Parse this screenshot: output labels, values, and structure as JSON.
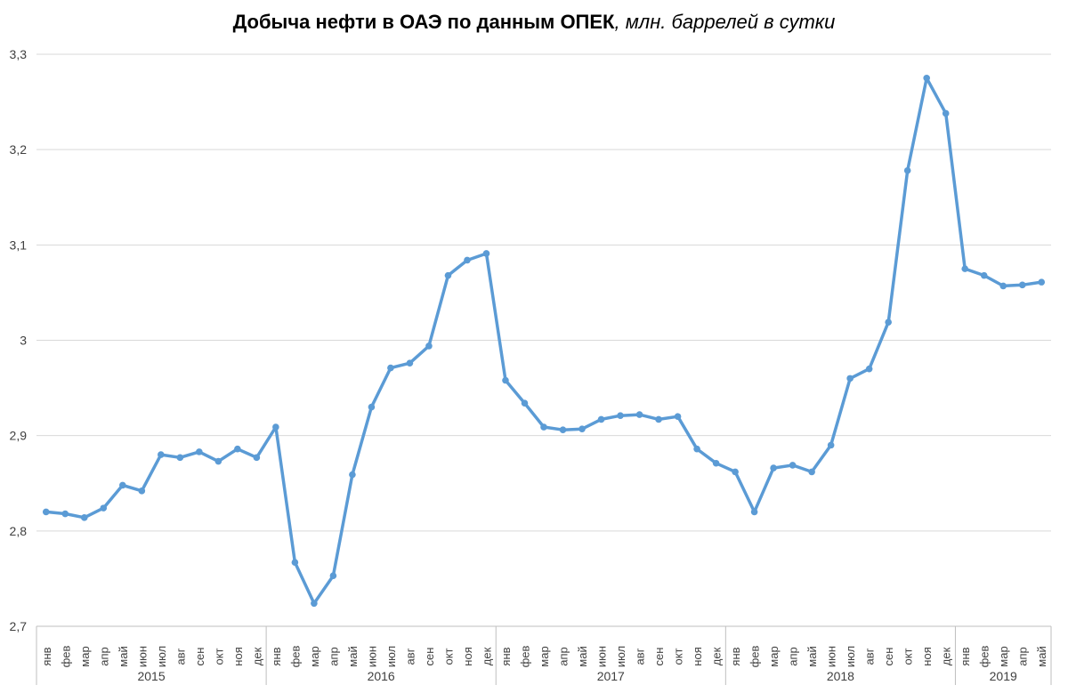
{
  "chart_data": {
    "type": "line",
    "title": "Добыча нефти в ОАЭ по данным ОПЕК",
    "subtitle": ", млн. баррелей в сутки",
    "xlabel": "",
    "ylabel": "",
    "ylim": [
      2.7,
      3.3
    ],
    "yticks": [
      "2,7",
      "2,8",
      "2,9",
      "3",
      "3,1",
      "3,2",
      "3,3"
    ],
    "ytick_values": [
      2.7,
      2.8,
      2.9,
      3.0,
      3.1,
      3.2,
      3.3
    ],
    "grid": true,
    "color": "#5B9BD5",
    "year_groups": [
      {
        "year": "2015",
        "months": [
          "янв",
          "фев",
          "мар",
          "апр",
          "май",
          "июн",
          "июл",
          "авг",
          "сен",
          "окт",
          "ноя",
          "дек"
        ]
      },
      {
        "year": "2016",
        "months": [
          "янв",
          "фев",
          "мар",
          "апр",
          "май",
          "июн",
          "июл",
          "авг",
          "сен",
          "окт",
          "ноя",
          "дек"
        ]
      },
      {
        "year": "2017",
        "months": [
          "янв",
          "фев",
          "мар",
          "апр",
          "май",
          "июн",
          "июл",
          "авг",
          "сен",
          "окт",
          "ноя",
          "дек"
        ]
      },
      {
        "year": "2018",
        "months": [
          "янв",
          "фев",
          "мар",
          "апр",
          "май",
          "июн",
          "июл",
          "авг",
          "сен",
          "окт",
          "ноя",
          "дек"
        ]
      },
      {
        "year": "2019",
        "months": [
          "янв",
          "фев",
          "мар",
          "апр",
          "май"
        ]
      }
    ],
    "series": [
      {
        "name": "Добыча нефти",
        "values": [
          2.82,
          2.818,
          2.814,
          2.824,
          2.848,
          2.842,
          2.88,
          2.877,
          2.883,
          2.873,
          2.886,
          2.877,
          2.909,
          2.767,
          2.724,
          2.753,
          2.859,
          2.93,
          2.971,
          2.976,
          2.994,
          3.068,
          3.084,
          3.091,
          2.958,
          2.934,
          2.909,
          2.906,
          2.907,
          2.917,
          2.921,
          2.922,
          2.917,
          2.92,
          2.886,
          2.871,
          2.862,
          2.82,
          2.866,
          2.869,
          2.862,
          2.89,
          2.96,
          2.97,
          3.019,
          3.178,
          3.275,
          3.238,
          3.075,
          3.068,
          3.057,
          3.058,
          3.061
        ]
      }
    ]
  }
}
